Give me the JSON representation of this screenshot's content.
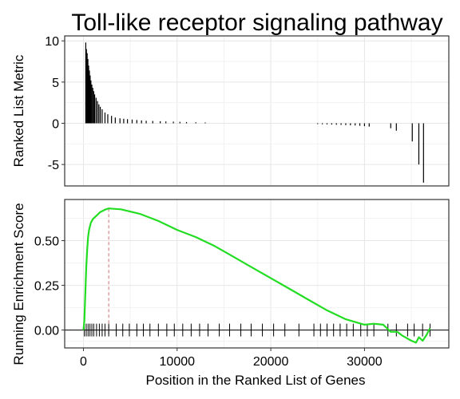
{
  "chart_data": [
    {
      "type": "bar",
      "title": "Toll-like receptor signaling pathway",
      "ylabel": "Ranked List Metric",
      "xlim": [
        -2000,
        39000
      ],
      "ylim": [
        -7.6,
        10.6
      ],
      "yticks": [
        10,
        5,
        0,
        -5
      ],
      "grid": true,
      "x": [
        250,
        320,
        400,
        480,
        560,
        640,
        720,
        800,
        900,
        1000,
        1100,
        1200,
        1350,
        1500,
        1650,
        1800,
        2000,
        2300,
        2600,
        3000,
        3400,
        3900,
        4300,
        4700,
        5200,
        5700,
        6200,
        6700,
        7400,
        8200,
        8800,
        9600,
        10300,
        11000,
        12000,
        13000,
        25000,
        25500,
        26000,
        26500,
        27000,
        27500,
        28000,
        28500,
        29000,
        29500,
        30000,
        30500,
        32800,
        33400,
        35100,
        35800,
        36300
      ],
      "values": [
        9.8,
        9.0,
        8.5,
        7.8,
        7.0,
        6.4,
        5.8,
        5.2,
        4.7,
        4.3,
        3.9,
        3.5,
        3.1,
        2.7,
        2.3,
        2.0,
        1.7,
        1.3,
        1.1,
        0.9,
        0.7,
        0.6,
        0.55,
        0.5,
        0.45,
        0.4,
        0.35,
        0.3,
        0.28,
        0.25,
        0.22,
        0.2,
        0.18,
        0.15,
        0.12,
        0.1,
        -0.1,
        -0.12,
        -0.14,
        -0.16,
        -0.18,
        -0.2,
        -0.22,
        -0.24,
        -0.26,
        -0.3,
        -0.35,
        -0.4,
        -0.6,
        -0.9,
        -2.2,
        -5.0,
        -7.2
      ]
    },
    {
      "type": "line",
      "ylabel": "Running Enrichment Score",
      "xlabel": "Position in the Ranked List of Genes",
      "xlim": [
        -2000,
        39000
      ],
      "ylim": [
        -0.1,
        0.73
      ],
      "xticks": [
        0,
        10000,
        20000,
        30000
      ],
      "xticklabels": [
        "0",
        "10000",
        "20000",
        "30000"
      ],
      "yticks": [
        0.0,
        0.25,
        0.5
      ],
      "yticklabels": [
        "0.00",
        "0.25",
        "0.50"
      ],
      "grid": true,
      "line_color": "#22dd22",
      "peak_color": "#d07070",
      "peak_x": 2700,
      "x": [
        0,
        100,
        200,
        300,
        400,
        500,
        600,
        800,
        1000,
        1200,
        1400,
        1600,
        1800,
        2000,
        2200,
        2400,
        2700,
        4000,
        6000,
        8000,
        10000,
        12000,
        14000,
        16000,
        18000,
        20000,
        22000,
        24000,
        26000,
        28000,
        30000,
        31000,
        32000,
        32800,
        33500,
        34000,
        35000,
        35500,
        35800,
        36200,
        36600,
        37000
      ],
      "values": [
        0.0,
        0.05,
        0.2,
        0.35,
        0.45,
        0.52,
        0.56,
        0.6,
        0.62,
        0.63,
        0.64,
        0.65,
        0.66,
        0.665,
        0.67,
        0.675,
        0.68,
        0.675,
        0.65,
        0.61,
        0.56,
        0.52,
        0.47,
        0.41,
        0.35,
        0.29,
        0.23,
        0.17,
        0.11,
        0.06,
        0.03,
        0.035,
        0.03,
        -0.01,
        -0.01,
        -0.03,
        -0.06,
        -0.07,
        -0.04,
        -0.06,
        -0.03,
        0.01
      ],
      "hit_positions": [
        100,
        300,
        500,
        700,
        900,
        1100,
        1400,
        1700,
        2000,
        2300,
        2700,
        3500,
        4200,
        4900,
        5700,
        6400,
        7100,
        8000,
        8900,
        9700,
        10600,
        11500,
        12400,
        13300,
        14500,
        15600,
        16800,
        17900,
        19100,
        20300,
        21500,
        23000,
        24600,
        25300,
        26000,
        26700,
        27400,
        28100,
        28800,
        29600,
        30300,
        31000,
        32500,
        33400,
        34600,
        35300,
        36200,
        37000
      ]
    }
  ]
}
